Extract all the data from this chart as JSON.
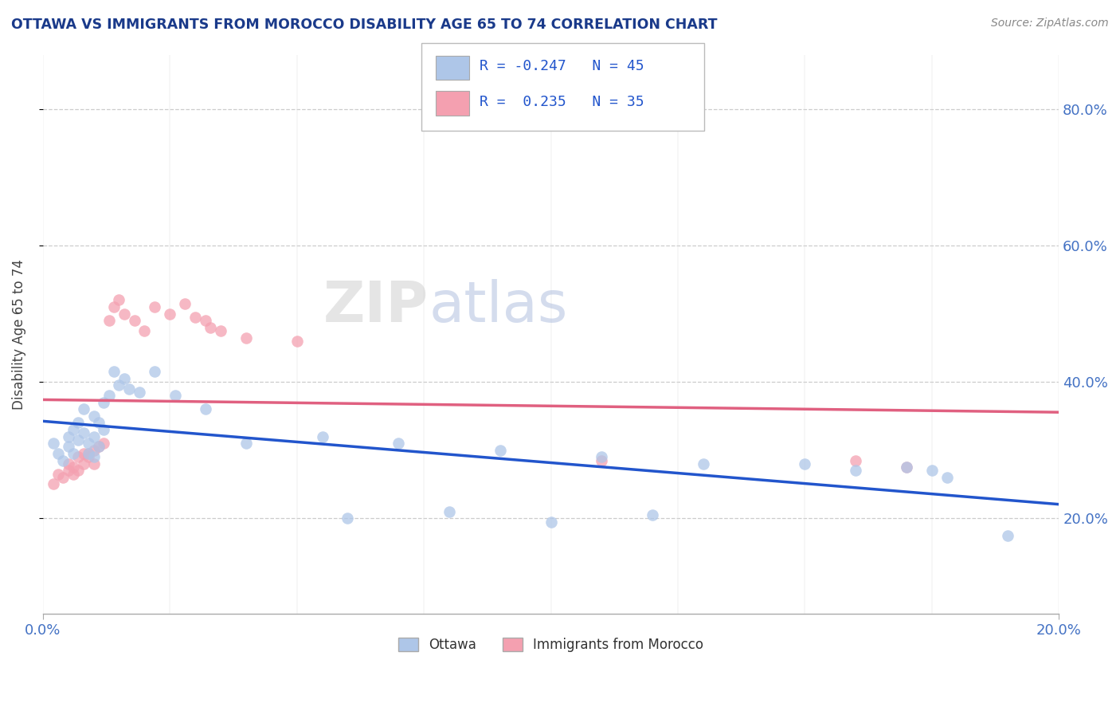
{
  "title": "OTTAWA VS IMMIGRANTS FROM MOROCCO DISABILITY AGE 65 TO 74 CORRELATION CHART",
  "source": "Source: ZipAtlas.com",
  "ylabel": "Disability Age 65 to 74",
  "ytick_vals": [
    0.2,
    0.4,
    0.6,
    0.8
  ],
  "xmin": 0.0,
  "xmax": 0.2,
  "ymin": 0.06,
  "ymax": 0.88,
  "ottawa_color": "#aec6e8",
  "morocco_color": "#f4a0b0",
  "ottawa_line_color": "#2255cc",
  "morocco_line_color": "#e06080",
  "legend_entries": [
    {
      "color": "#aec6e8",
      "R": "-0.247",
      "N": "45"
    },
    {
      "color": "#f4a0b0",
      "R": " 0.235",
      "N": "35"
    }
  ],
  "legend_labels": [
    "Ottawa",
    "Immigrants from Morocco"
  ],
  "grid_color": "#cccccc",
  "background_color": "#ffffff",
  "ottawa_x": [
    0.002,
    0.003,
    0.004,
    0.005,
    0.005,
    0.006,
    0.006,
    0.007,
    0.007,
    0.008,
    0.008,
    0.009,
    0.009,
    0.01,
    0.01,
    0.01,
    0.011,
    0.011,
    0.012,
    0.012,
    0.013,
    0.014,
    0.015,
    0.016,
    0.017,
    0.019,
    0.022,
    0.026,
    0.032,
    0.04,
    0.055,
    0.07,
    0.09,
    0.11,
    0.13,
    0.15,
    0.16,
    0.17,
    0.175,
    0.178,
    0.06,
    0.08,
    0.1,
    0.12,
    0.19
  ],
  "ottawa_y": [
    0.31,
    0.295,
    0.285,
    0.32,
    0.305,
    0.33,
    0.295,
    0.34,
    0.315,
    0.36,
    0.325,
    0.295,
    0.31,
    0.35,
    0.32,
    0.29,
    0.34,
    0.305,
    0.37,
    0.33,
    0.38,
    0.415,
    0.395,
    0.405,
    0.39,
    0.385,
    0.415,
    0.38,
    0.36,
    0.31,
    0.32,
    0.31,
    0.3,
    0.29,
    0.28,
    0.28,
    0.27,
    0.275,
    0.27,
    0.26,
    0.2,
    0.21,
    0.195,
    0.205,
    0.175
  ],
  "morocco_x": [
    0.002,
    0.003,
    0.004,
    0.005,
    0.005,
    0.006,
    0.006,
    0.007,
    0.007,
    0.008,
    0.008,
    0.009,
    0.009,
    0.01,
    0.01,
    0.011,
    0.012,
    0.013,
    0.014,
    0.015,
    0.016,
    0.018,
    0.02,
    0.022,
    0.025,
    0.028,
    0.03,
    0.032,
    0.033,
    0.035,
    0.04,
    0.05,
    0.11,
    0.16,
    0.17
  ],
  "morocco_y": [
    0.25,
    0.265,
    0.26,
    0.28,
    0.27,
    0.275,
    0.265,
    0.29,
    0.27,
    0.295,
    0.28,
    0.29,
    0.295,
    0.3,
    0.28,
    0.305,
    0.31,
    0.49,
    0.51,
    0.52,
    0.5,
    0.49,
    0.475,
    0.51,
    0.5,
    0.515,
    0.495,
    0.49,
    0.48,
    0.475,
    0.465,
    0.46,
    0.285,
    0.285,
    0.275
  ]
}
